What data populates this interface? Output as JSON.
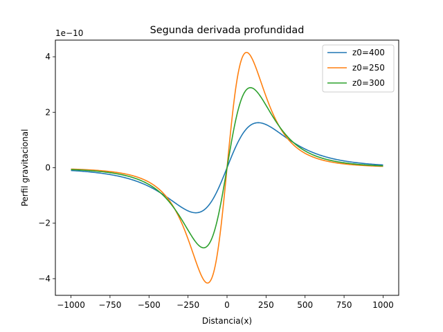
{
  "chart_data": {
    "type": "line",
    "title": "Segunda derivada profundidad",
    "xlabel": "Distancia(x)",
    "ylabel": "Perfil gravitacional",
    "y_offset_label": "1e−10",
    "xlim": [
      -1100,
      1100
    ],
    "ylim": [
      -4.6,
      4.6
    ],
    "y_scale": "1e-10",
    "x_ticks": [
      -1000,
      -750,
      -500,
      -250,
      0,
      250,
      500,
      750,
      1000
    ],
    "x_tick_labels": [
      "−1000",
      "−750",
      "−500",
      "−250",
      "0",
      "250",
      "500",
      "750",
      "1000"
    ],
    "y_ticks": [
      -4,
      -2,
      0,
      2,
      4
    ],
    "y_tick_labels": [
      "−4",
      "−2",
      "0",
      "2",
      "4"
    ],
    "grid": false,
    "legend_position": "top-right",
    "x_range": [
      -1000,
      1000
    ],
    "series": [
      {
        "name": "z0=400",
        "z0": 400,
        "color": "#1f77b4",
        "peak": 1.624,
        "peak_x": -231
      },
      {
        "name": "z0=250",
        "z0": 250,
        "color": "#ff7f0e",
        "peak": 4.157,
        "peak_x": -144
      },
      {
        "name": "z0=300",
        "z0": 300,
        "color": "#2ca02c",
        "peak": 2.887,
        "peak_x": -173
      }
    ]
  }
}
